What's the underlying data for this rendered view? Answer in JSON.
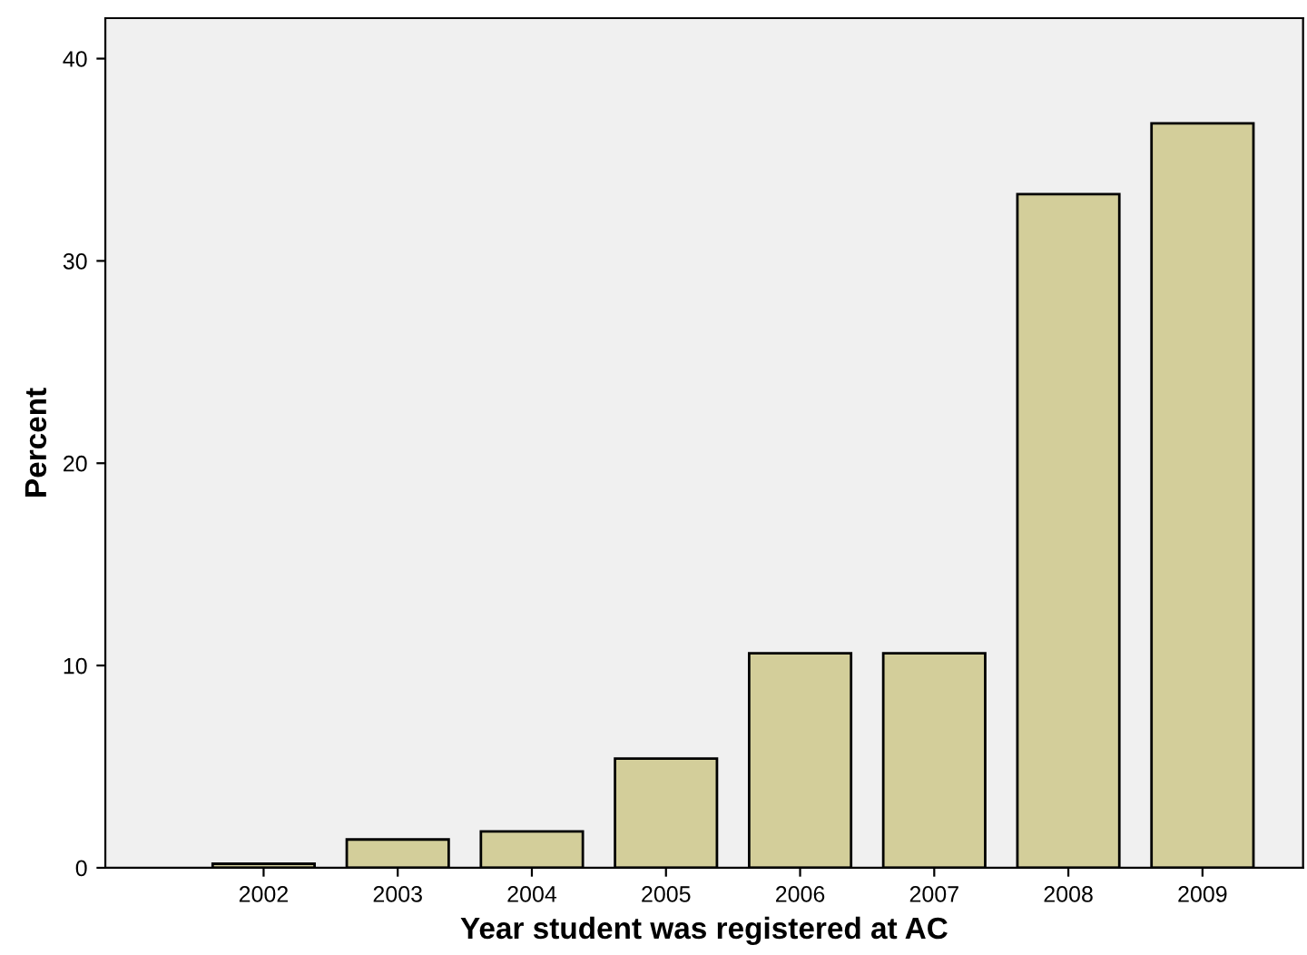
{
  "chart_data": {
    "type": "bar",
    "categories": [
      "2002",
      "2003",
      "2004",
      "2005",
      "2006",
      "2007",
      "2008",
      "2009"
    ],
    "values": [
      0.2,
      1.4,
      1.8,
      5.4,
      10.6,
      10.6,
      33.3,
      36.8
    ],
    "color": "#d3ce9a",
    "xlabel": "Year student was registered at AC",
    "ylabel": "Percent",
    "ylim": [
      0,
      42
    ],
    "yticks": [
      0,
      10,
      20,
      30,
      40
    ],
    "grid": false,
    "legend": false
  }
}
